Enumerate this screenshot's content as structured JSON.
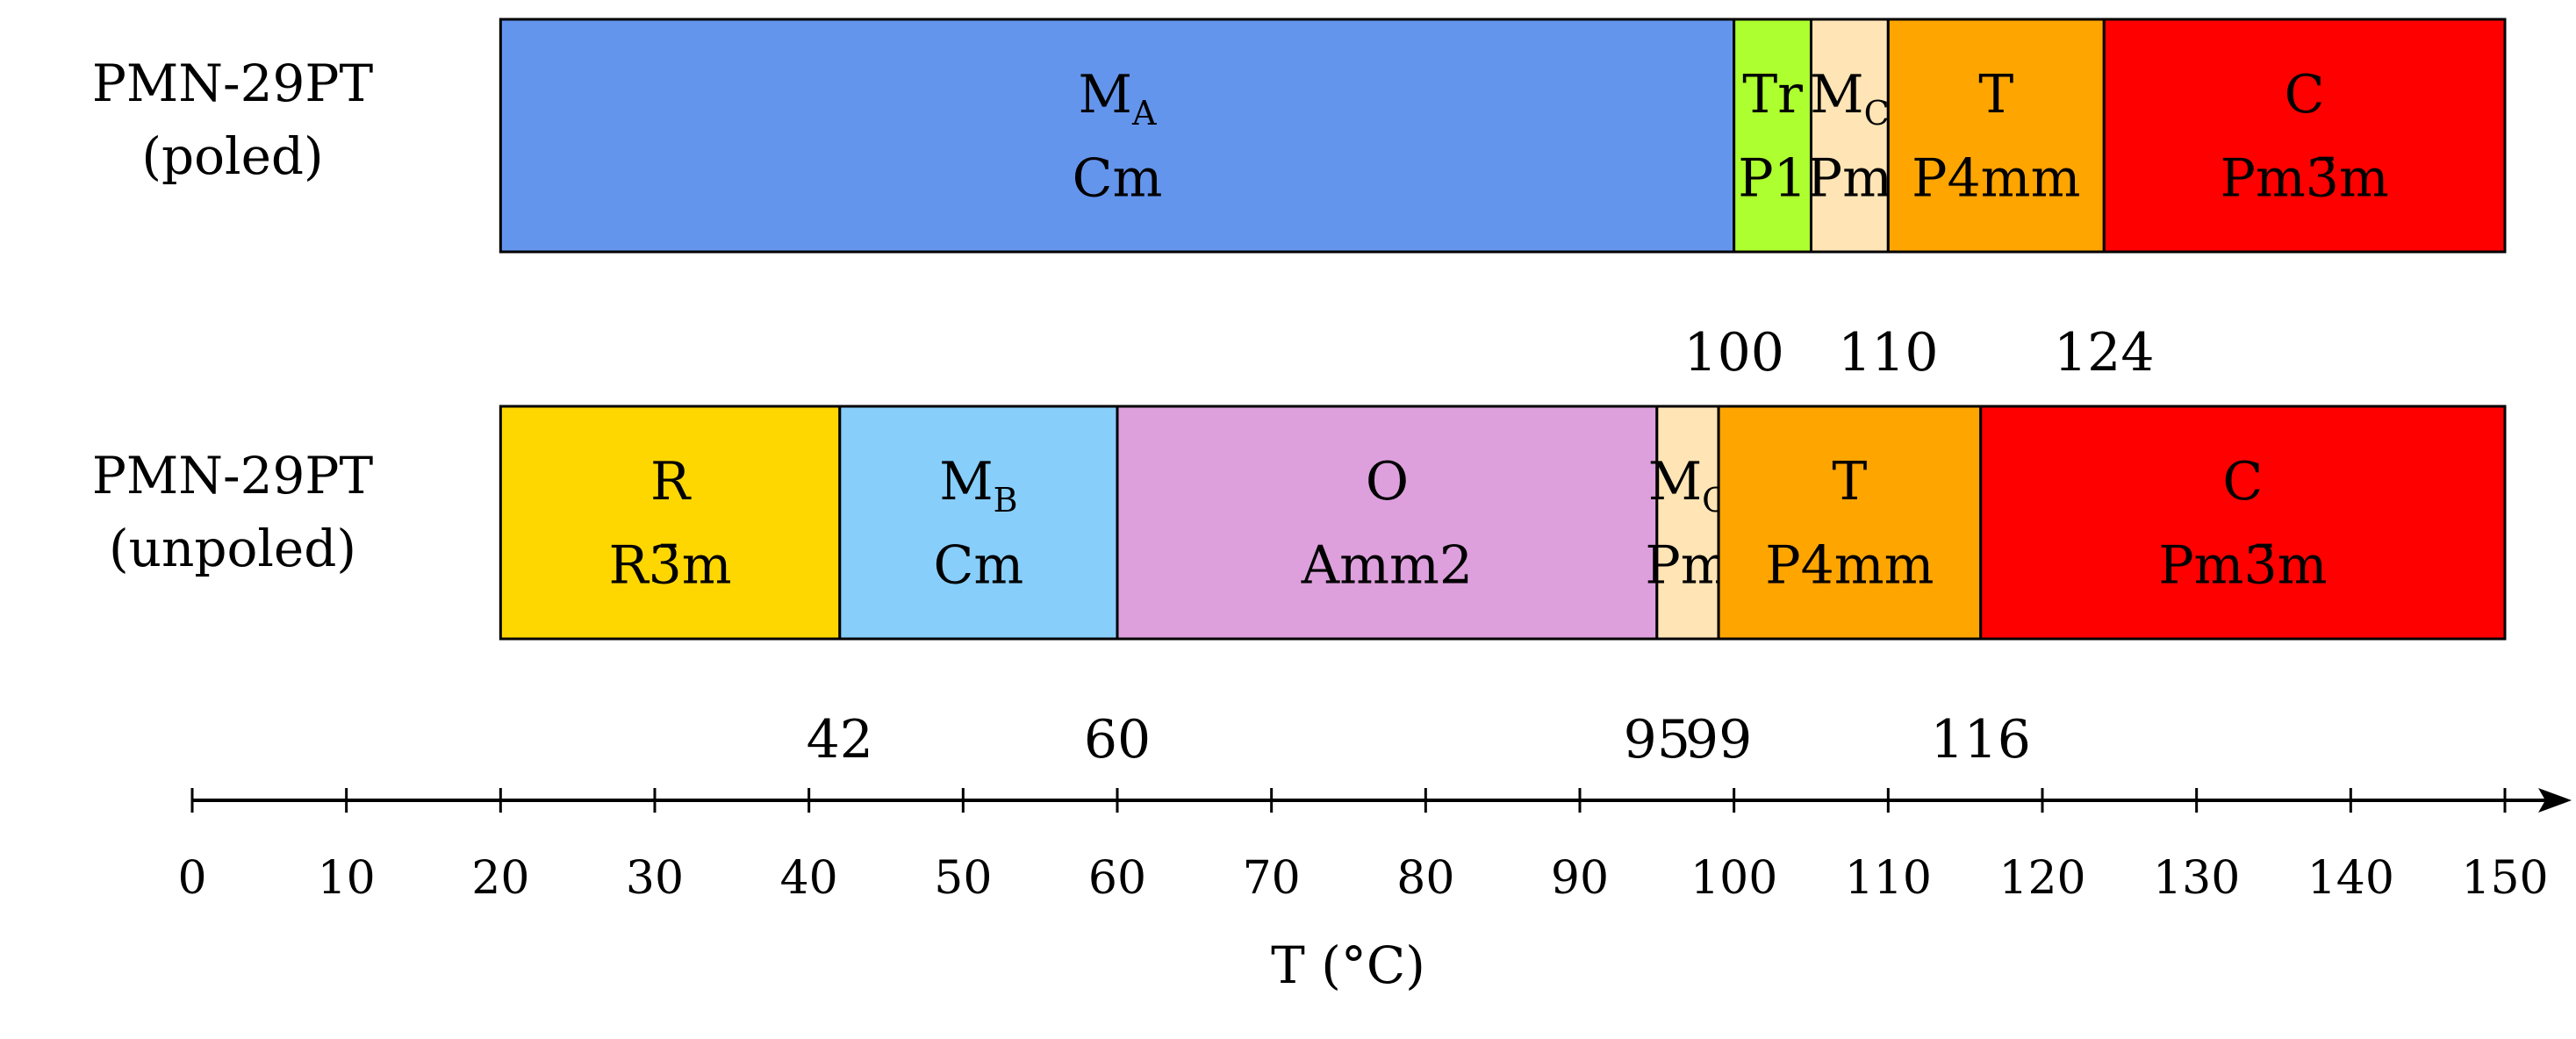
{
  "chart_data": {
    "type": "bar",
    "xlabel": "T (°C)",
    "xlim": [
      0,
      150
    ],
    "x_ticks": [
      0,
      10,
      20,
      30,
      40,
      50,
      60,
      70,
      80,
      90,
      100,
      110,
      120,
      130,
      140,
      150
    ],
    "grid": false,
    "legend": "none",
    "rows": [
      {
        "label_line1": "PMN-29PT",
        "label_line2": "(poled)",
        "segments": [
          {
            "start": 20,
            "end": 100,
            "phase": "M",
            "phase_sub": "A",
            "space_group": "Cm",
            "color": "#6495ed"
          },
          {
            "start": 100,
            "end": 105,
            "phase": "Tr",
            "phase_sub": "",
            "space_group": "P1",
            "color": "#adff2f"
          },
          {
            "start": 105,
            "end": 110,
            "phase": "M",
            "phase_sub": "C",
            "space_group": "Pm",
            "color": "#ffe4b5"
          },
          {
            "start": 110,
            "end": 124,
            "phase": "T",
            "phase_sub": "",
            "space_group": "P4mm",
            "color": "#ffa500"
          },
          {
            "start": 124,
            "end": 150,
            "phase": "C",
            "phase_sub": "",
            "space_group": "Pm3̄m",
            "color": "#ff0000"
          }
        ],
        "boundary_labels": [
          {
            "value": 100,
            "text": "100"
          },
          {
            "value": 110,
            "text": "110"
          },
          {
            "value": 124,
            "text": "124"
          }
        ]
      },
      {
        "label_line1": "PMN-29PT",
        "label_line2": "(unpoled)",
        "segments": [
          {
            "start": 20,
            "end": 42,
            "phase": "R",
            "phase_sub": "",
            "space_group": "R3̄m",
            "color": "#ffd700"
          },
          {
            "start": 42,
            "end": 60,
            "phase": "M",
            "phase_sub": "B",
            "space_group": "Cm",
            "color": "#87cefa"
          },
          {
            "start": 60,
            "end": 95,
            "phase": "O",
            "phase_sub": "",
            "space_group": "Amm2",
            "color": "#dda0dd"
          },
          {
            "start": 95,
            "end": 99,
            "phase": "M",
            "phase_sub": "C",
            "space_group": "Pm",
            "color": "#ffe4b5"
          },
          {
            "start": 99,
            "end": 116,
            "phase": "T",
            "phase_sub": "",
            "space_group": "P4mm",
            "color": "#ffa500"
          },
          {
            "start": 116,
            "end": 150,
            "phase": "C",
            "phase_sub": "",
            "space_group": "Pm3̄m",
            "color": "#ff0000"
          }
        ],
        "boundary_labels": [
          {
            "value": 42,
            "text": "42"
          },
          {
            "value": 60,
            "text": "60"
          },
          {
            "value": 95,
            "text": "95"
          },
          {
            "value": 99,
            "text": "99"
          },
          {
            "value": 116,
            "text": "116"
          }
        ]
      }
    ]
  }
}
